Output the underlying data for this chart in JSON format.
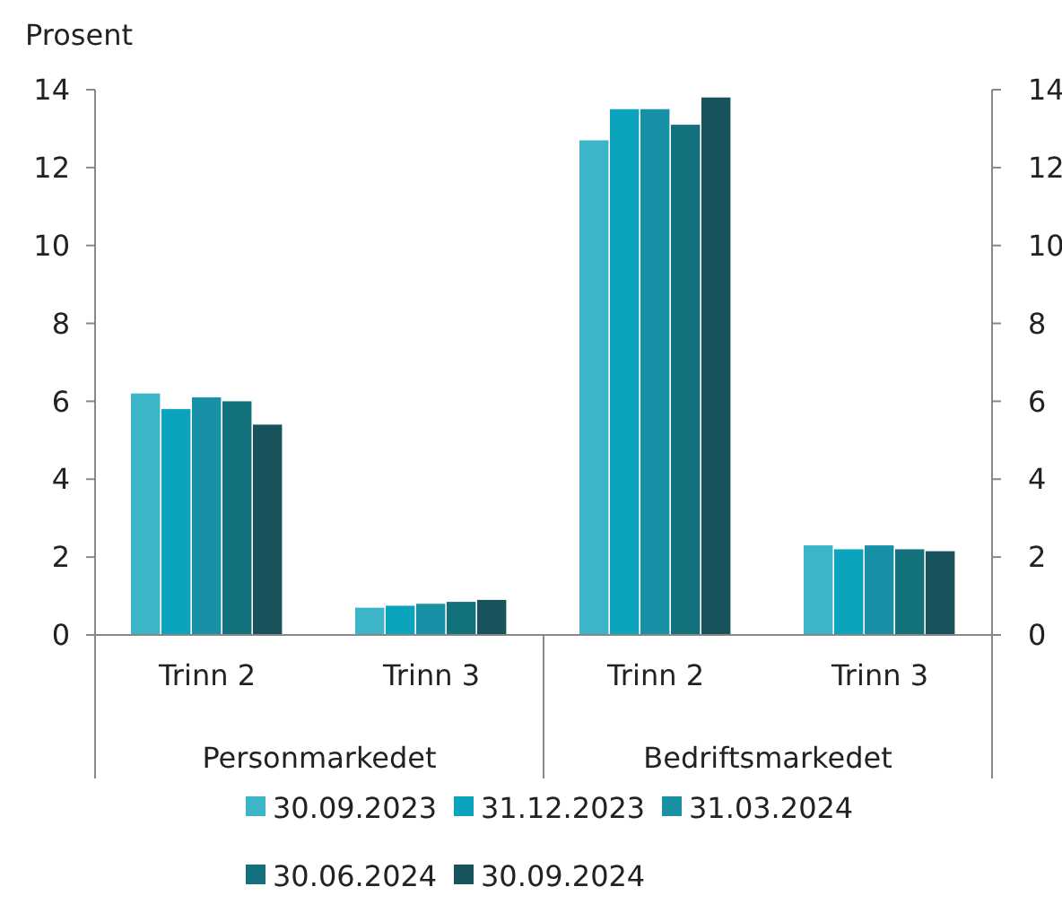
{
  "chart_data": {
    "type": "bar",
    "ylabel": "Prosent",
    "categories": [
      "Trinn 2",
      "Trinn 3",
      "Trinn 2",
      "Trinn 3"
    ],
    "annotations": [
      "Personmarkedet",
      "Bedriftsmarkedet"
    ],
    "series": [
      {
        "name": "30.09.2023",
        "color": "#3db5c9",
        "values": [
          6.2,
          0.7,
          12.7,
          2.3
        ]
      },
      {
        "name": "31.12.2023",
        "color": "#0ca3bd",
        "values": [
          5.8,
          0.75,
          13.5,
          2.2
        ]
      },
      {
        "name": "31.03.2024",
        "color": "#1890a6",
        "values": [
          6.1,
          0.8,
          13.5,
          2.3
        ]
      },
      {
        "name": "30.06.2024",
        "color": "#13717e",
        "values": [
          6.0,
          0.85,
          13.1,
          2.2
        ]
      },
      {
        "name": "30.09.2024",
        "color": "#18525a",
        "values": [
          5.4,
          0.9,
          13.8,
          2.15
        ]
      }
    ],
    "ylim": [
      0,
      14
    ],
    "yticks": [
      0,
      2,
      4,
      6,
      8,
      10,
      12,
      14
    ],
    "y2lim": [
      0,
      14
    ],
    "y2ticks": [
      0,
      2,
      4,
      6,
      8,
      10,
      12,
      14
    ],
    "grid": false,
    "legend": "bottom"
  }
}
